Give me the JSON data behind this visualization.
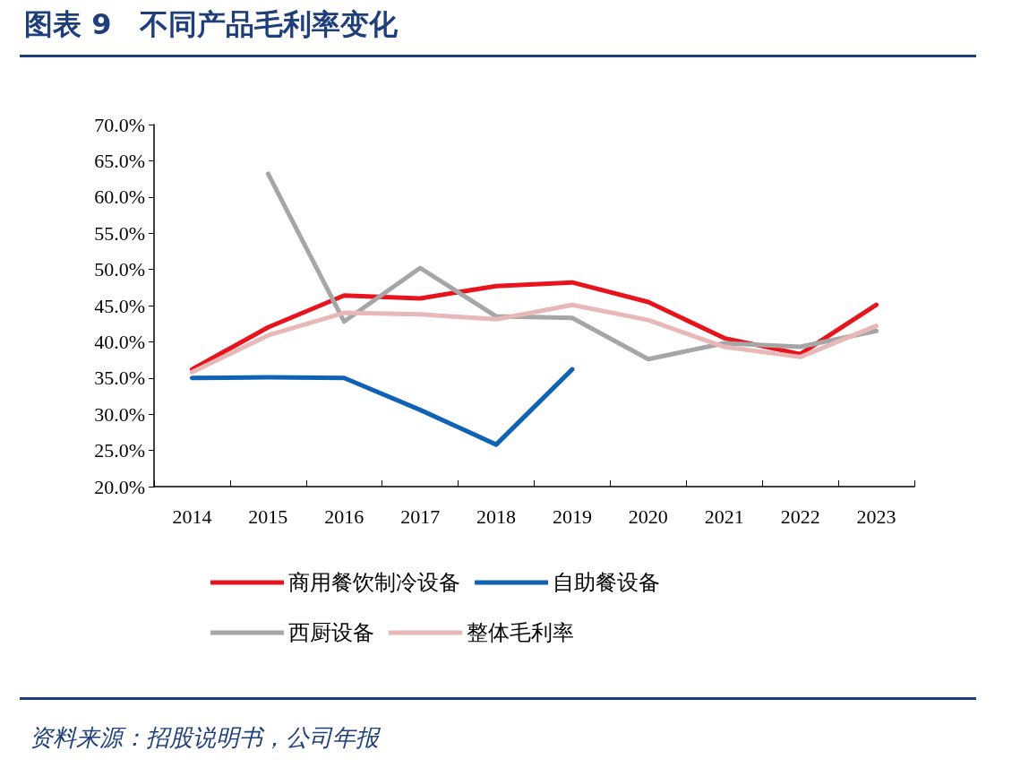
{
  "chart_data": {
    "type": "line",
    "title": "图表 9　不同产品毛利率变化",
    "categories": [
      "2014",
      "2015",
      "2016",
      "2017",
      "2018",
      "2019",
      "2020",
      "2021",
      "2022",
      "2023"
    ],
    "series": [
      {
        "name": "商用餐饮制冷设备",
        "color": "#e8141d",
        "values": [
          36.2,
          42.0,
          46.4,
          46.0,
          47.7,
          48.2,
          45.5,
          40.5,
          38.3,
          45.1
        ]
      },
      {
        "name": "自助餐设备",
        "color": "#0f62b4",
        "values": [
          35.0,
          35.1,
          35.0,
          30.6,
          25.8,
          36.2,
          null,
          null,
          null,
          null
        ]
      },
      {
        "name": "西厨设备",
        "color": "#a6a6a6",
        "values": [
          null,
          63.2,
          42.8,
          50.2,
          43.5,
          43.3,
          37.6,
          39.8,
          39.3,
          41.5
        ]
      },
      {
        "name": "整体毛利率",
        "color": "#e8b7b7",
        "values": [
          35.8,
          40.9,
          44.0,
          43.8,
          43.1,
          45.1,
          43.0,
          39.3,
          37.9,
          42.2
        ]
      }
    ],
    "ylim": [
      20,
      70
    ],
    "yticks": [
      {
        "value": 20,
        "label": "20.0%"
      },
      {
        "value": 25,
        "label": "25.0%"
      },
      {
        "value": 30,
        "label": "30.0%"
      },
      {
        "value": 35,
        "label": "35.0%"
      },
      {
        "value": 40,
        "label": "40.0%"
      },
      {
        "value": 45,
        "label": "45.0%"
      },
      {
        "value": 50,
        "label": "50.0%"
      },
      {
        "value": 55,
        "label": "55.0%"
      },
      {
        "value": 60,
        "label": "60.0%"
      },
      {
        "value": 65,
        "label": "65.0%"
      },
      {
        "value": 70,
        "label": "70.0%"
      }
    ],
    "grid": false,
    "legend": "bottom",
    "marker": "none",
    "line_style": "solid",
    "annotations": [
      "资料来源：招股说明书，公司年报"
    ]
  }
}
